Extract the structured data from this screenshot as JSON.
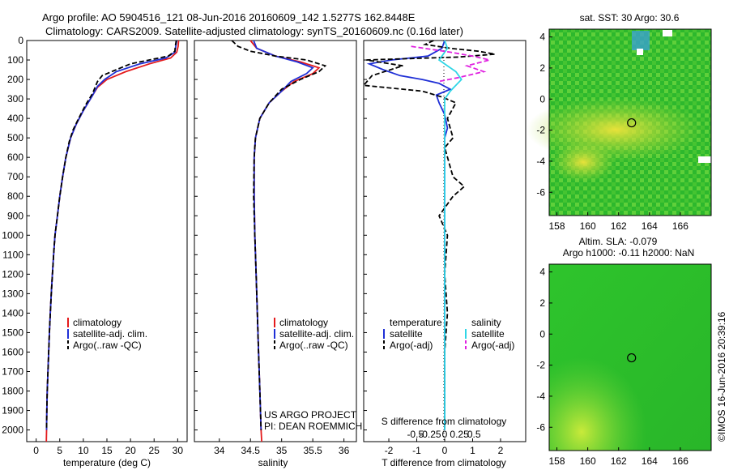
{
  "header": {
    "title_line1": "Argo profile: AO 5904516_121 08-Jun-2016 20160609_142 1.5277S 162.8448E",
    "title_line2": "Climatology: CARS2009. Satellite-adjusted climatology: synTS_20160609.nc (0.16d later)"
  },
  "colors": {
    "climatology": "#e41a1c",
    "satellite": "#1f2fd6",
    "argo": "#000000",
    "satellite_salinity": "#2fd6e6",
    "argo_salinity": "#e020e0"
  },
  "depth_axis": {
    "ticks": [
      0,
      100,
      200,
      300,
      400,
      500,
      600,
      700,
      800,
      900,
      1000,
      1100,
      1200,
      1300,
      1400,
      1500,
      1600,
      1700,
      1800,
      1900,
      2000
    ],
    "range": [
      0,
      2060
    ]
  },
  "chart_data": [
    {
      "type": "line",
      "panel": "temperature",
      "xlabel": "temperature (deg C)",
      "xlim": [
        -2,
        32
      ],
      "xticks": [
        0,
        5,
        10,
        15,
        20,
        25,
        30
      ],
      "legend": {
        "position": "lower-middle",
        "entries": [
          "climatology",
          "satellite-adj. clim.",
          "Argo(..raw -QC)"
        ]
      },
      "series": [
        {
          "name": "climatology",
          "style": "solid",
          "color": "#e41a1c",
          "points": [
            [
              30.2,
              0
            ],
            [
              30.1,
              30
            ],
            [
              29.8,
              60
            ],
            [
              28.5,
              90
            ],
            [
              24,
              120
            ],
            [
              19,
              160
            ],
            [
              15,
              200
            ],
            [
              13,
              240
            ],
            [
              12,
              280
            ],
            [
              10,
              360
            ],
            [
              8.5,
              430
            ],
            [
              7.3,
              500
            ],
            [
              6.3,
              600
            ],
            [
              5.6,
              700
            ],
            [
              5,
              800
            ],
            [
              4.5,
              900
            ],
            [
              4,
              1000
            ],
            [
              3.7,
              1100
            ],
            [
              3.45,
              1200
            ],
            [
              3.2,
              1300
            ],
            [
              3,
              1400
            ],
            [
              2.8,
              1500
            ],
            [
              2.65,
              1600
            ],
            [
              2.5,
              1700
            ],
            [
              2.35,
              1800
            ],
            [
              2.25,
              1900
            ],
            [
              2.2,
              2000
            ],
            [
              2.15,
              2060
            ]
          ]
        },
        {
          "name": "satellite-adj. clim.",
          "style": "solid",
          "color": "#1f2fd6",
          "points": [
            [
              29.8,
              0
            ],
            [
              29.6,
              30
            ],
            [
              29.4,
              60
            ],
            [
              27.5,
              90
            ],
            [
              22,
              120
            ],
            [
              17,
              160
            ],
            [
              14.5,
              200
            ],
            [
              13,
              235
            ],
            [
              12,
              280
            ],
            [
              10,
              360
            ],
            [
              8.5,
              430
            ],
            [
              7.3,
              500
            ],
            [
              6.3,
              600
            ],
            [
              5.6,
              700
            ],
            [
              5,
              800
            ],
            [
              4.5,
              900
            ],
            [
              4,
              1000
            ],
            [
              3.7,
              1100
            ],
            [
              3.45,
              1200
            ],
            [
              3.2,
              1300
            ],
            [
              3,
              1400
            ],
            [
              2.8,
              1500
            ],
            [
              2.65,
              1600
            ],
            [
              2.5,
              1700
            ],
            [
              2.35,
              1800
            ],
            [
              2.25,
              1900
            ],
            [
              2.2,
              2000
            ]
          ]
        },
        {
          "name": "Argo(..raw -QC)",
          "style": "dashed",
          "color": "#000000",
          "points": [
            [
              29.7,
              0
            ],
            [
              29.5,
              30
            ],
            [
              29.4,
              55
            ],
            [
              28,
              80
            ],
            [
              24,
              100
            ],
            [
              20,
              120
            ],
            [
              17,
              150
            ],
            [
              14,
              180
            ],
            [
              13,
              210
            ],
            [
              12.5,
              240
            ],
            [
              12,
              270
            ],
            [
              10.5,
              330
            ],
            [
              9,
              400
            ],
            [
              7.8,
              460
            ],
            [
              7,
              520
            ],
            [
              6.3,
              600
            ],
            [
              5.6,
              700
            ],
            [
              5,
              800
            ],
            [
              4.5,
              900
            ],
            [
              4,
              1000
            ],
            [
              3.7,
              1100
            ],
            [
              3.45,
              1200
            ],
            [
              3.2,
              1300
            ],
            [
              3,
              1400
            ],
            [
              2.8,
              1500
            ],
            [
              2.65,
              1600
            ],
            [
              2.5,
              1700
            ],
            [
              2.35,
              1800
            ],
            [
              2.25,
              1900
            ],
            [
              2.2,
              2000
            ]
          ]
        }
      ]
    },
    {
      "type": "line",
      "panel": "salinity",
      "xlabel": "salinity",
      "xlim": [
        33.6,
        36.2
      ],
      "xticks": [
        34,
        34.5,
        35,
        35.5,
        36
      ],
      "legend": {
        "position": "lower-middle",
        "entries": [
          "climatology",
          "satellite-adj. clim.",
          "Argo(..raw -QC)"
        ]
      },
      "series": [
        {
          "name": "climatology",
          "style": "solid",
          "color": "#e41a1c",
          "points": [
            [
              34.5,
              0
            ],
            [
              34.6,
              40
            ],
            [
              34.9,
              80
            ],
            [
              35.3,
              110
            ],
            [
              35.6,
              140
            ],
            [
              35.5,
              170
            ],
            [
              35.2,
              210
            ],
            [
              35,
              260
            ],
            [
              34.8,
              320
            ],
            [
              34.65,
              400
            ],
            [
              34.58,
              500
            ],
            [
              34.56,
              600
            ],
            [
              34.56,
              800
            ],
            [
              34.57,
              1000
            ],
            [
              34.59,
              1200
            ],
            [
              34.61,
              1400
            ],
            [
              34.63,
              1600
            ],
            [
              34.65,
              1800
            ],
            [
              34.67,
              2000
            ],
            [
              34.68,
              2060
            ]
          ]
        },
        {
          "name": "satellite-adj. clim.",
          "style": "solid",
          "color": "#1f2fd6",
          "points": [
            [
              34.55,
              0
            ],
            [
              34.6,
              40
            ],
            [
              34.9,
              80
            ],
            [
              35.25,
              110
            ],
            [
              35.5,
              140
            ],
            [
              35.4,
              170
            ],
            [
              35.15,
              210
            ],
            [
              35,
              260
            ],
            [
              34.8,
              320
            ],
            [
              34.65,
              400
            ],
            [
              34.58,
              500
            ],
            [
              34.56,
              600
            ],
            [
              34.56,
              800
            ],
            [
              34.57,
              1000
            ],
            [
              34.59,
              1200
            ],
            [
              34.61,
              1400
            ],
            [
              34.63,
              1600
            ],
            [
              34.65,
              1800
            ],
            [
              34.67,
              2000
            ]
          ]
        },
        {
          "name": "Argo(..raw -QC)",
          "style": "dashed",
          "color": "#000000",
          "points": [
            [
              34.2,
              0
            ],
            [
              34.3,
              30
            ],
            [
              34.5,
              55
            ],
            [
              34.9,
              80
            ],
            [
              35.4,
              100
            ],
            [
              35.7,
              130
            ],
            [
              35.6,
              160
            ],
            [
              35.3,
              200
            ],
            [
              35,
              250
            ],
            [
              34.8,
              320
            ],
            [
              34.65,
              400
            ],
            [
              34.58,
              500
            ],
            [
              34.56,
              600
            ],
            [
              34.55,
              800
            ],
            [
              34.57,
              1000
            ],
            [
              34.59,
              1200
            ],
            [
              34.61,
              1400
            ],
            [
              34.63,
              1600
            ],
            [
              34.65,
              1800
            ],
            [
              34.67,
              2000
            ]
          ]
        }
      ]
    },
    {
      "type": "line",
      "panel": "differences",
      "xlabel": "T difference from climatology",
      "xlabel_top": "S difference from climatology",
      "xlim": [
        -2.9,
        2.9
      ],
      "xticks": [
        -2,
        -1,
        0,
        1,
        2
      ],
      "xticks_top": [
        "-0.5",
        "-0.25",
        "0",
        "0.25",
        "0.5"
      ],
      "legend": {
        "position": "lower-middle",
        "groups": [
          {
            "title": "temperature",
            "entries": [
              "satellite",
              "Argo(-adj)"
            ]
          },
          {
            "title": "salinity",
            "entries": [
              "satellite",
              "Argo(-adj)"
            ]
          }
        ]
      },
      "series": [
        {
          "name": "temperature satellite",
          "style": "solid",
          "color": "#1f2fd6",
          "points": [
            [
              0,
              0
            ],
            [
              -0.1,
              40
            ],
            [
              -0.6,
              80
            ],
            [
              -1.9,
              100
            ],
            [
              -2.7,
              120
            ],
            [
              -2.2,
              150
            ],
            [
              -1.6,
              180
            ],
            [
              -0.8,
              200
            ],
            [
              -0.2,
              220
            ],
            [
              0.2,
              250
            ],
            [
              -0.3,
              280
            ],
            [
              -0.2,
              320
            ],
            [
              0,
              380
            ],
            [
              0.1,
              450
            ],
            [
              0,
              500
            ],
            [
              0,
              600
            ],
            [
              0,
              800
            ],
            [
              0,
              1000
            ],
            [
              0,
              1200
            ],
            [
              0,
              1600
            ],
            [
              0,
              2000
            ]
          ]
        },
        {
          "name": "temperature Argo(-adj)",
          "style": "dashed",
          "color": "#000000",
          "points": [
            [
              -0.4,
              0
            ],
            [
              -0.7,
              20
            ],
            [
              0.2,
              40
            ],
            [
              1.2,
              55
            ],
            [
              1.8,
              70
            ],
            [
              0.5,
              85
            ],
            [
              -2.8,
              100
            ],
            [
              -1.5,
              130
            ],
            [
              -2.6,
              180
            ],
            [
              -2.9,
              230
            ],
            [
              -0.8,
              260
            ],
            [
              -0.1,
              290
            ],
            [
              0.4,
              320
            ],
            [
              0.1,
              400
            ],
            [
              0.3,
              500
            ],
            [
              0,
              550
            ],
            [
              0.2,
              650
            ],
            [
              0.3,
              700
            ],
            [
              0.7,
              750
            ],
            [
              0.3,
              800
            ],
            [
              -0.2,
              900
            ],
            [
              0.1,
              1000
            ],
            [
              0,
              1200
            ],
            [
              0.1,
              1400
            ],
            [
              0,
              1600
            ],
            [
              0,
              1800
            ],
            [
              0,
              2000
            ]
          ]
        },
        {
          "name": "salinity satellite",
          "style": "solid",
          "color": "#2fd6e6",
          "points": [
            [
              0,
              0
            ],
            [
              0.1,
              40
            ],
            [
              -0.1,
              80
            ],
            [
              -0.2,
              100
            ],
            [
              0.1,
              130
            ],
            [
              0.4,
              160
            ],
            [
              0.6,
              200
            ],
            [
              0.2,
              260
            ],
            [
              0,
              300
            ],
            [
              0,
              400
            ],
            [
              0,
              600
            ],
            [
              0,
              800
            ],
            [
              0,
              1000
            ],
            [
              0,
              1200
            ],
            [
              0,
              1600
            ],
            [
              0,
              2000
            ]
          ]
        },
        {
          "name": "salinity Argo(-adj)",
          "style": "dashed",
          "color": "#e020e0",
          "points": [
            [
              -1.2,
              30
            ],
            [
              0.2,
              60
            ],
            [
              1,
              80
            ],
            [
              1.6,
              100
            ],
            [
              0.8,
              130
            ],
            [
              1.4,
              160
            ],
            [
              0.5,
              190
            ],
            [
              -0.2,
              210
            ]
          ]
        }
      ]
    },
    {
      "type": "heatmap",
      "panel": "sat-SST",
      "title": "sat. SST: 30 Argo: 30.6",
      "xlim": [
        157.5,
        168
      ],
      "ylim": [
        -7.5,
        4.5
      ],
      "xticks": [
        158,
        160,
        162,
        164,
        166
      ],
      "yticks": [
        4,
        2,
        0,
        -2,
        -4,
        -6
      ],
      "marker": {
        "lon": 162.84,
        "lat": -1.53
      }
    },
    {
      "type": "heatmap",
      "panel": "altimetry",
      "title_line1": "Altim. SLA: -0.079",
      "title_line2": "Argo h1000: -0.11 h2000: NaN",
      "xlim": [
        157.5,
        168
      ],
      "ylim": [
        -7.5,
        4.5
      ],
      "xticks": [
        158,
        160,
        162,
        164,
        166
      ],
      "yticks": [
        4,
        2,
        0,
        -2,
        -4,
        -6
      ],
      "marker": {
        "lon": 162.84,
        "lat": -1.53
      }
    }
  ],
  "annotations": {
    "project_line1": "US ARGO PROJECT",
    "project_line2": "PI: DEAN ROEMMICH",
    "imos_stamp": "©IMOS 16-Jun-2016 20:39:16"
  }
}
